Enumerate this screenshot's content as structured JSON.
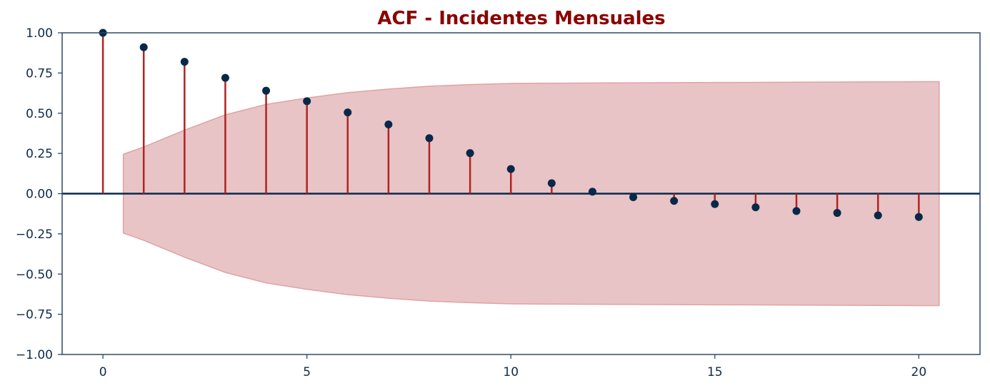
{
  "chart_data": {
    "type": "scatter",
    "subtype": "acf-stem",
    "title": "ACF - Incidentes Mensuales",
    "xlabel": "",
    "ylabel": "",
    "xlim": [
      -1,
      21.5
    ],
    "ylim": [
      -1.0,
      1.0
    ],
    "x_ticks": [
      0,
      5,
      10,
      15,
      20
    ],
    "x_tick_labels": [
      "0",
      "5",
      "10",
      "15",
      "20"
    ],
    "y_ticks": [
      1.0,
      0.75,
      0.5,
      0.25,
      0.0,
      -0.25,
      -0.5,
      -0.75,
      -1.0
    ],
    "y_tick_labels": [
      "1.00",
      "0.75",
      "0.50",
      "0.25",
      "0.00",
      "−0.25",
      "−0.50",
      "−0.75",
      "−1.00"
    ],
    "grid": false,
    "lags": [
      0,
      1,
      2,
      3,
      4,
      5,
      6,
      7,
      8,
      9,
      10,
      11,
      12,
      13,
      14,
      15,
      16,
      17,
      18,
      19,
      20
    ],
    "acf_values": [
      1.0,
      0.91,
      0.82,
      0.72,
      0.64,
      0.575,
      0.505,
      0.43,
      0.345,
      0.252,
      0.153,
      0.065,
      0.012,
      -0.022,
      -0.045,
      -0.065,
      -0.085,
      -0.108,
      -0.12,
      -0.135,
      -0.145
    ],
    "confidence_band": {
      "x": [
        0.5,
        1,
        2,
        3,
        4,
        5,
        6,
        7,
        8,
        9,
        10,
        11,
        12,
        13,
        14,
        15,
        16,
        17,
        18,
        19,
        20,
        20.5
      ],
      "upper": [
        0.245,
        0.29,
        0.395,
        0.49,
        0.555,
        0.595,
        0.628,
        0.65,
        0.668,
        0.678,
        0.685,
        0.687,
        0.688,
        0.689,
        0.69,
        0.691,
        0.692,
        0.693,
        0.694,
        0.695,
        0.696,
        0.696
      ]
    },
    "colors": {
      "title": "#8b0000",
      "stem": "#b22222",
      "marker": "#06294a",
      "zero_line": "#06294a",
      "band_fill": "#e8c4c6",
      "band_edge": "#dfa3a3",
      "axes": "#2c4a6a",
      "tick_label": "#0f2b4a"
    }
  }
}
